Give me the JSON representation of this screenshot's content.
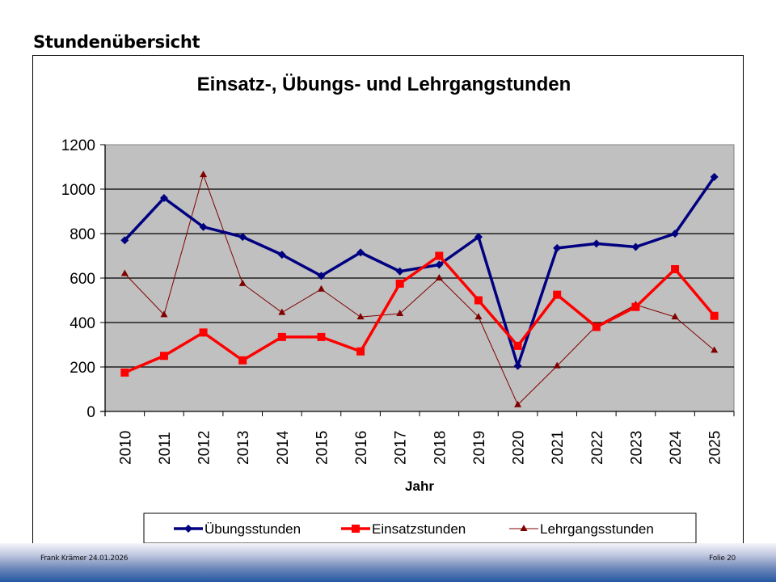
{
  "slide": {
    "title": "Stundenübersicht",
    "footer_left": "Frank Krämer 24.01.2026",
    "footer_right": "Folie 20"
  },
  "colors": {
    "plot_background": "#c0c0c0",
    "uebungsstunden": "#000080",
    "einsatzstunden": "#ff0000",
    "lehrgangsstunden": "#800000"
  },
  "chart_data": {
    "type": "line",
    "title": "Einsatz-, Übungs- und Lehrgangstunden",
    "xlabel": "Jahr",
    "ylabel": "",
    "ylim": [
      0,
      1200
    ],
    "yticks": [
      0,
      200,
      400,
      600,
      800,
      1000,
      1200
    ],
    "grid": true,
    "legend_position": "bottom",
    "categories": [
      "2010",
      "2011",
      "2012",
      "2013",
      "2014",
      "2015",
      "2016",
      "2017",
      "2018",
      "2019",
      "2020",
      "2021",
      "2022",
      "2023",
      "2024",
      "2025"
    ],
    "series": [
      {
        "name": "Übungsstunden",
        "marker": "diamond",
        "color": "#000080",
        "values": [
          770,
          960,
          830,
          785,
          705,
          610,
          715,
          630,
          660,
          785,
          205,
          735,
          755,
          740,
          800,
          1055
        ]
      },
      {
        "name": "Einsatzstunden",
        "marker": "square",
        "color": "#ff0000",
        "values": [
          175,
          250,
          355,
          230,
          335,
          335,
          270,
          575,
          700,
          500,
          295,
          525,
          380,
          470,
          640,
          430
        ]
      },
      {
        "name": "Lehrgangsstunden",
        "marker": "triangle",
        "color": "#800000",
        "values": [
          620,
          435,
          1065,
          575,
          445,
          550,
          425,
          440,
          600,
          425,
          30,
          205,
          385,
          480,
          425,
          275
        ]
      }
    ]
  }
}
